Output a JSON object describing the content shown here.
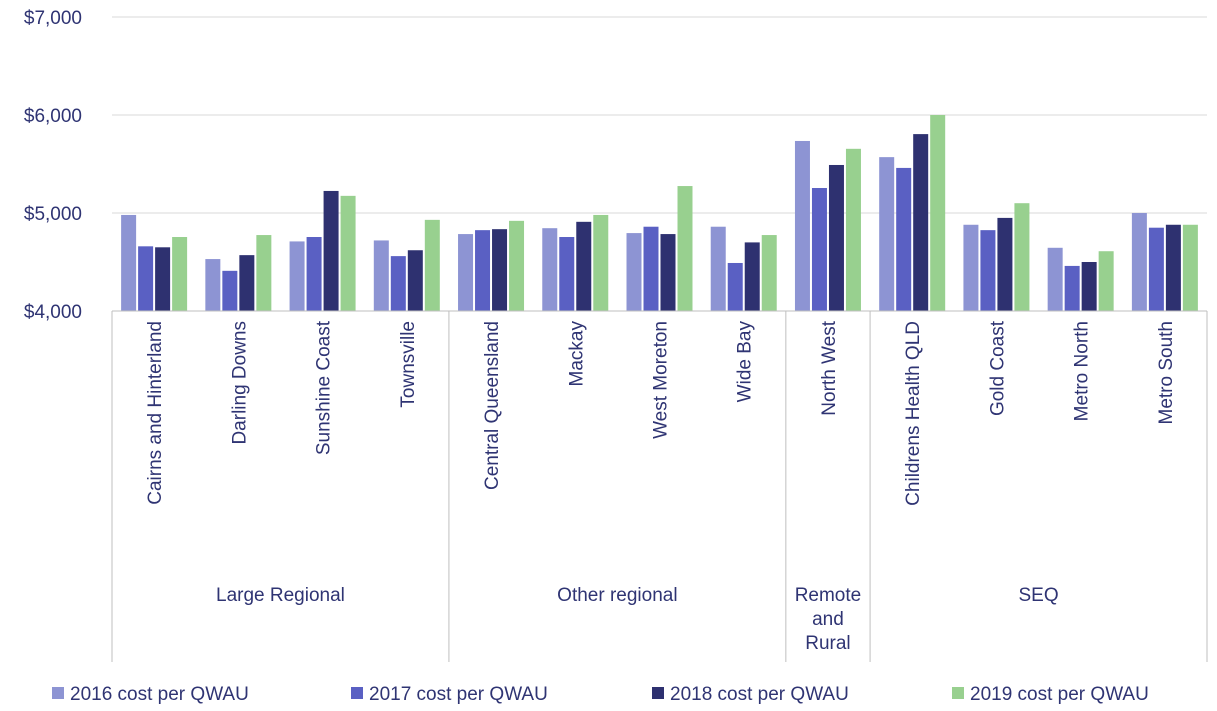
{
  "chart_data": {
    "type": "bar",
    "groups": [
      {
        "label": "Large Regional",
        "categories": [
          "Cairns and Hinterland",
          "Darling Downs",
          "Sunshine Coast",
          "Townsville"
        ]
      },
      {
        "label": "Other regional",
        "categories": [
          "Central Queensland",
          "Mackay",
          "West Moreton",
          "Wide Bay"
        ]
      },
      {
        "label": "Remote and Rural",
        "categories": [
          "North West"
        ]
      },
      {
        "label": "SEQ",
        "categories": [
          "Childrens Health QLD",
          "Gold Coast",
          "Metro North",
          "Metro South"
        ]
      }
    ],
    "series": [
      {
        "name": "2016 cost per QWAU",
        "color": "#8d94d3",
        "values": [
          4980,
          4530,
          4710,
          4720,
          4785,
          4845,
          4795,
          4860,
          5735,
          5570,
          4880,
          4645,
          5000
        ]
      },
      {
        "name": "2017 cost per QWAU",
        "color": "#5a60c3",
        "values": [
          4660,
          4410,
          4755,
          4560,
          4825,
          4755,
          4860,
          4490,
          5255,
          5460,
          4825,
          4460,
          4850
        ]
      },
      {
        "name": "2018 cost per QWAU",
        "color": "#2e3170",
        "values": [
          4650,
          4570,
          5225,
          4620,
          4835,
          4910,
          4785,
          4700,
          5490,
          5805,
          4950,
          4500,
          4880
        ]
      },
      {
        "name": "2019 cost per QWAU",
        "color": "#98d08f",
        "values": [
          4755,
          4775,
          5175,
          4930,
          4920,
          4980,
          5275,
          4775,
          5655,
          6000,
          5100,
          4610,
          4880
        ]
      }
    ],
    "ylim": [
      4000,
      7000
    ],
    "yticks": [
      {
        "value": 4000,
        "label": "$4,000"
      },
      {
        "value": 5000,
        "label": "$5,000"
      },
      {
        "value": 6000,
        "label": "$6,000"
      },
      {
        "value": 7000,
        "label": "$7,000"
      }
    ],
    "grid": true,
    "legend": "bottom"
  }
}
